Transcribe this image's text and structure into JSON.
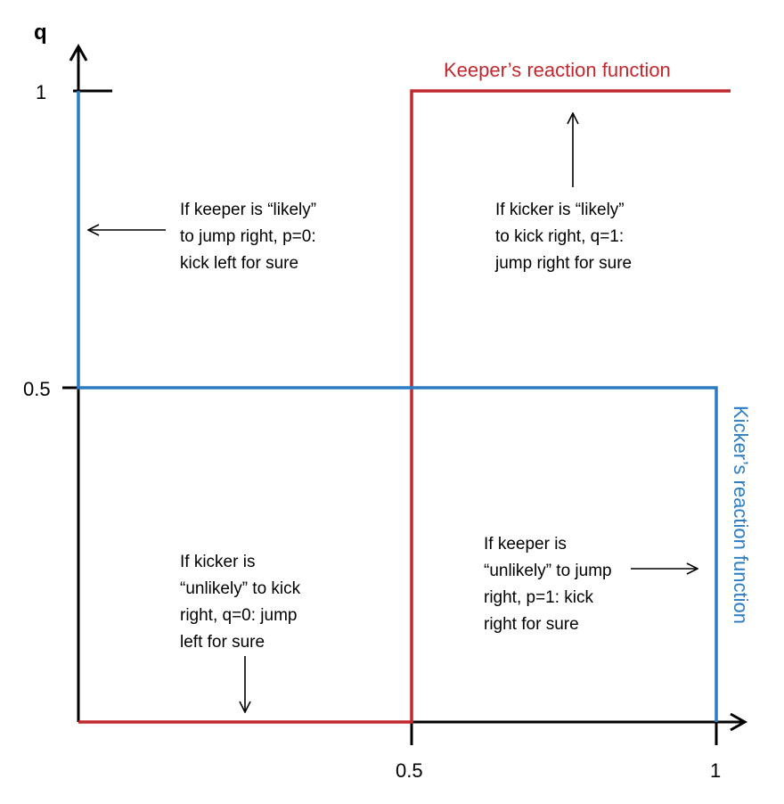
{
  "axes": {
    "y_title": "q",
    "y_ticks": [
      "1",
      "0.5"
    ],
    "x_ticks": [
      "0.5",
      "1"
    ]
  },
  "colors": {
    "keeper": "#c0282d",
    "kicker": "#2b7cc2",
    "axis": "#000000"
  },
  "functions": {
    "keeper_label": "Keeper’s reaction function",
    "kicker_label": "Kicker’s reaction function"
  },
  "annotations": {
    "top_left": [
      "If keeper is “likely”",
      "to jump right, p=0:",
      "kick left for sure"
    ],
    "top_right": [
      "If kicker is “likely”",
      "to kick right, q=1:",
      "jump right for sure"
    ],
    "bottom_left": [
      "If kicker is",
      "“unlikely” to kick",
      "right, q=0: jump",
      "left for sure"
    ],
    "bottom_right": [
      "If keeper is",
      "“unlikely” to jump",
      "right, p=1: kick",
      "right for sure"
    ]
  }
}
